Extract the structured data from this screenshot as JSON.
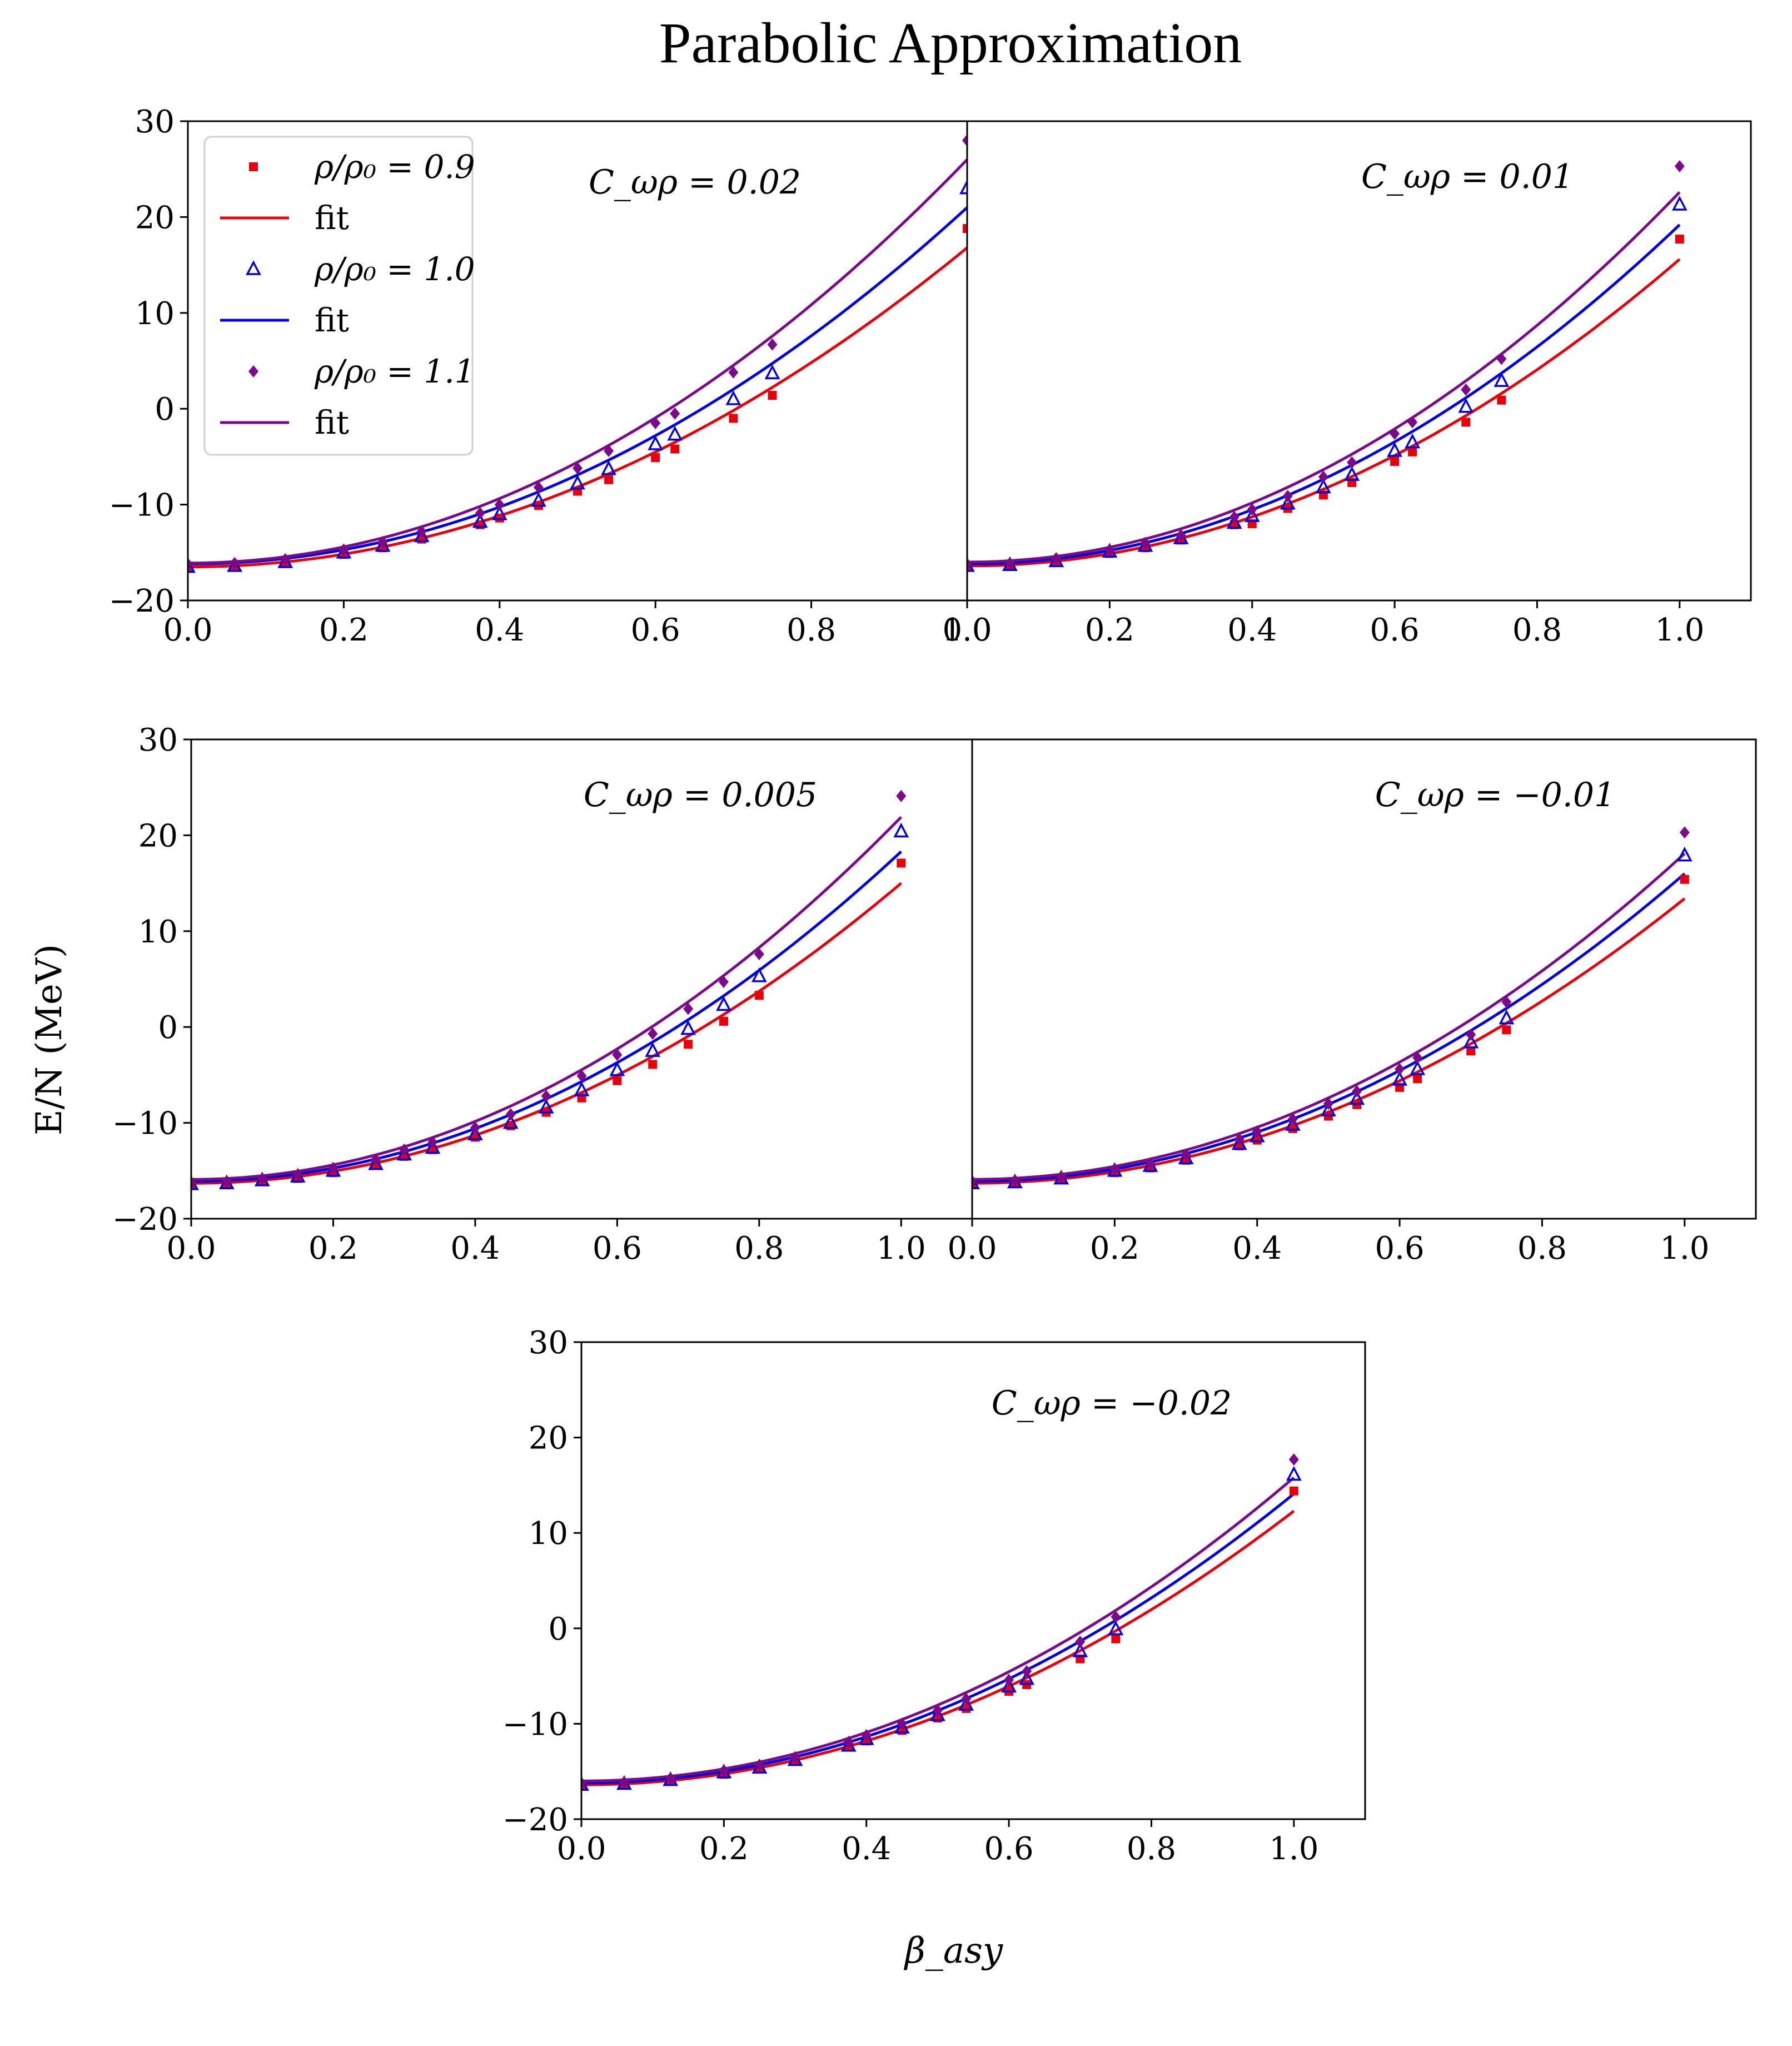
{
  "figure": {
    "title": "Parabolic Approximation",
    "ylabel": "E/N (MeV)",
    "xlabel": "β_asy"
  },
  "legend": [
    {
      "label": "ρ/ρ₀ = 0.9",
      "series": "0.9",
      "kind": "marker"
    },
    {
      "label": "fit",
      "series": "0.9",
      "kind": "line"
    },
    {
      "label": "ρ/ρ₀ = 1.0",
      "series": "1.0",
      "kind": "marker"
    },
    {
      "label": "fit",
      "series": "1.0",
      "kind": "line"
    },
    {
      "label": "ρ/ρ₀ = 1.1",
      "series": "1.1",
      "kind": "marker"
    },
    {
      "label": "fit",
      "series": "1.1",
      "kind": "line"
    }
  ],
  "colors": {
    "0.9": "#e8000b",
    "1.0": "#0000e0",
    "1.1": "#7a0a8a"
  },
  "chart_data": [
    {
      "type": "scatter",
      "title": "C_ωρ = 0.02",
      "annotation": "C_ωρ = 0.02",
      "xlim": [
        0.0,
        1.0
      ],
      "ylim": [
        -20,
        30
      ],
      "xticks": [
        "0.0",
        "0.2",
        "0.4",
        "0.6",
        "0.8",
        "1.0"
      ],
      "yticks": [
        "−20",
        "−10",
        "0",
        "10",
        "20",
        "30"
      ],
      "series": [
        {
          "name": "ρ/ρ₀ = 0.9",
          "marker": "square",
          "x": [
            0,
            0.06,
            0.125,
            0.2,
            0.25,
            0.3,
            0.375,
            0.4,
            0.45,
            0.5,
            0.54,
            0.6,
            0.625,
            0.7,
            0.75,
            1.0
          ],
          "y": [
            -16.6,
            -16.5,
            -16.1,
            -15.2,
            -14.5,
            -13.6,
            -12.1,
            -11.4,
            -10.1,
            -8.6,
            -7.4,
            -5.1,
            -4.2,
            -1.0,
            1.4,
            18.8
          ]
        },
        {
          "name": "fit (ρ/ρ₀ = 0.9)",
          "a": -16.5,
          "b": 33.3
        },
        {
          "name": "ρ/ρ₀ = 1.0",
          "marker": "triangle",
          "x": [
            0,
            0.06,
            0.125,
            0.2,
            0.25,
            0.3,
            0.375,
            0.4,
            0.45,
            0.5,
            0.54,
            0.6,
            0.625,
            0.7,
            0.75,
            1.0
          ],
          "y": [
            -16.5,
            -16.4,
            -16.0,
            -15.0,
            -14.3,
            -13.3,
            -11.8,
            -11.0,
            -9.6,
            -7.8,
            -6.3,
            -3.7,
            -2.7,
            1.0,
            3.7,
            23.0
          ]
        },
        {
          "name": "fit (ρ/ρ₀ = 1.0)",
          "a": -16.2,
          "b": 37.2
        },
        {
          "name": "ρ/ρ₀ = 1.1",
          "marker": "diamond",
          "x": [
            0,
            0.06,
            0.125,
            0.2,
            0.25,
            0.3,
            0.375,
            0.4,
            0.45,
            0.5,
            0.54,
            0.6,
            0.625,
            0.7,
            0.75,
            1.0
          ],
          "y": [
            -16.2,
            -16.1,
            -15.7,
            -14.7,
            -13.9,
            -12.8,
            -10.9,
            -10.0,
            -8.2,
            -6.2,
            -4.4,
            -1.5,
            -0.5,
            3.8,
            6.7,
            28.0
          ]
        },
        {
          "name": "fit (ρ/ρ₀ = 1.1)",
          "a": -16.1,
          "b": 42.1
        }
      ]
    },
    {
      "type": "scatter",
      "title": "C_ωρ = 0.01",
      "annotation": "C_ωρ = 0.01",
      "xlim": [
        0.0,
        1.1
      ],
      "ylim": [
        -20,
        30
      ],
      "xticks": [
        "0.0",
        "0.2",
        "0.4",
        "0.6",
        "0.8",
        "1.0"
      ],
      "yticks": [],
      "series": [
        {
          "name": "ρ/ρ₀ = 0.9",
          "marker": "square",
          "x": [
            0,
            0.06,
            0.125,
            0.2,
            0.25,
            0.3,
            0.375,
            0.4,
            0.45,
            0.5,
            0.54,
            0.6,
            0.625,
            0.7,
            0.75,
            1.0
          ],
          "y": [
            -16.5,
            -16.4,
            -16.0,
            -15.1,
            -14.5,
            -13.7,
            -12.1,
            -12.0,
            -10.4,
            -9.0,
            -7.7,
            -5.5,
            -4.5,
            -1.4,
            0.9,
            17.7
          ]
        },
        {
          "name": "fit (ρ/ρ₀ = 0.9)",
          "a": -16.4,
          "b": 32.0
        },
        {
          "name": "ρ/ρ₀ = 1.0",
          "marker": "triangle",
          "x": [
            0,
            0.06,
            0.125,
            0.2,
            0.25,
            0.3,
            0.375,
            0.4,
            0.45,
            0.5,
            0.54,
            0.6,
            0.625,
            0.7,
            0.75,
            1.0
          ],
          "y": [
            -16.4,
            -16.3,
            -15.9,
            -14.9,
            -14.3,
            -13.5,
            -11.9,
            -11.2,
            -9.9,
            -8.2,
            -6.9,
            -4.4,
            -3.5,
            0.2,
            2.9,
            21.3
          ]
        },
        {
          "name": "fit (ρ/ρ₀ = 1.0)",
          "a": -16.2,
          "b": 35.4
        },
        {
          "name": "ρ/ρ₀ = 1.1",
          "marker": "diamond",
          "x": [
            0,
            0.06,
            0.125,
            0.2,
            0.25,
            0.3,
            0.375,
            0.4,
            0.45,
            0.5,
            0.54,
            0.6,
            0.625,
            0.7,
            0.75,
            1.0
          ],
          "y": [
            -16.2,
            -16.1,
            -15.6,
            -14.7,
            -14.0,
            -13.2,
            -11.3,
            -10.5,
            -9.1,
            -7.1,
            -5.6,
            -2.6,
            -1.4,
            2.0,
            5.2,
            25.3
          ]
        },
        {
          "name": "fit (ρ/ρ₀ = 1.1)",
          "a": -16.0,
          "b": 38.6
        }
      ]
    },
    {
      "type": "scatter",
      "title": "C_ωρ = 0.005",
      "annotation": "C_ωρ = 0.005",
      "xlim": [
        0.0,
        1.1
      ],
      "ylim": [
        -20,
        30
      ],
      "xticks": [
        "0.0",
        "0.2",
        "0.4",
        "0.6",
        "0.8",
        "1.0"
      ],
      "yticks": [
        "−20",
        "−10",
        "0",
        "10",
        "20",
        "30"
      ],
      "series": [
        {
          "name": "ρ/ρ₀ = 0.9",
          "marker": "square",
          "x": [
            0,
            0.05,
            0.1,
            0.15,
            0.2,
            0.26,
            0.3,
            0.34,
            0.4,
            0.45,
            0.5,
            0.55,
            0.6,
            0.65,
            0.7,
            0.75,
            0.8,
            1.0
          ],
          "y": [
            -16.5,
            -16.4,
            -16.1,
            -15.8,
            -15.2,
            -14.3,
            -13.5,
            -12.8,
            -11.5,
            -10.3,
            -8.9,
            -7.4,
            -5.6,
            -3.9,
            -1.8,
            0.6,
            3.3,
            17.1
          ]
        },
        {
          "name": "fit (ρ/ρ₀ = 0.9)",
          "a": -16.3,
          "b": 31.3
        },
        {
          "name": "ρ/ρ₀ = 1.0",
          "marker": "triangle",
          "x": [
            0,
            0.05,
            0.1,
            0.15,
            0.2,
            0.26,
            0.3,
            0.34,
            0.4,
            0.45,
            0.5,
            0.55,
            0.6,
            0.65,
            0.7,
            0.75,
            0.8,
            1.0
          ],
          "y": [
            -16.4,
            -16.3,
            -16.0,
            -15.6,
            -15.0,
            -14.3,
            -13.3,
            -12.6,
            -11.2,
            -10.0,
            -8.4,
            -6.6,
            -4.5,
            -2.5,
            -0.2,
            2.3,
            5.3,
            20.4
          ]
        },
        {
          "name": "fit (ρ/ρ₀ = 1.0)",
          "a": -16.1,
          "b": 34.4
        },
        {
          "name": "ρ/ρ₀ = 1.1",
          "marker": "diamond",
          "x": [
            0,
            0.05,
            0.1,
            0.15,
            0.2,
            0.26,
            0.3,
            0.34,
            0.4,
            0.45,
            0.5,
            0.55,
            0.6,
            0.65,
            0.7,
            0.75,
            0.8,
            1.0
          ],
          "y": [
            -16.2,
            -16.1,
            -15.8,
            -15.4,
            -14.7,
            -13.8,
            -12.8,
            -12.0,
            -10.5,
            -9.1,
            -7.2,
            -5.1,
            -2.9,
            -0.7,
            1.9,
            4.7,
            7.6,
            24.1
          ]
        },
        {
          "name": "fit (ρ/ρ₀ = 1.1)",
          "a": -15.9,
          "b": 37.8
        }
      ]
    },
    {
      "type": "scatter",
      "title": "C_ωρ = −0.01",
      "annotation": "C_ωρ = −0.01",
      "xlim": [
        0.0,
        1.1
      ],
      "ylim": [
        -20,
        30
      ],
      "xticks": [
        "0.0",
        "0.2",
        "0.4",
        "0.6",
        "0.8",
        "1.0"
      ],
      "yticks": [],
      "series": [
        {
          "name": "ρ/ρ₀ = 0.9",
          "marker": "square",
          "x": [
            0,
            0.06,
            0.125,
            0.2,
            0.25,
            0.3,
            0.375,
            0.4,
            0.45,
            0.5,
            0.54,
            0.6,
            0.625,
            0.7,
            0.75,
            1.0
          ],
          "y": [
            -16.4,
            -16.3,
            -15.9,
            -15.2,
            -14.7,
            -13.9,
            -12.4,
            -11.8,
            -10.6,
            -9.3,
            -8.1,
            -6.3,
            -5.4,
            -2.5,
            -0.3,
            15.4
          ]
        },
        {
          "name": "fit (ρ/ρ₀ = 0.9)",
          "a": -16.3,
          "b": 29.7
        },
        {
          "name": "ρ/ρ₀ = 1.0",
          "marker": "triangle",
          "x": [
            0,
            0.06,
            0.125,
            0.2,
            0.25,
            0.3,
            0.375,
            0.4,
            0.45,
            0.5,
            0.54,
            0.6,
            0.625,
            0.7,
            0.75,
            1.0
          ],
          "y": [
            -16.3,
            -16.2,
            -15.8,
            -15.0,
            -14.5,
            -13.7,
            -12.2,
            -11.4,
            -10.2,
            -8.7,
            -7.5,
            -5.5,
            -4.4,
            -1.6,
            0.9,
            17.9
          ]
        },
        {
          "name": "fit (ρ/ρ₀ = 1.0)",
          "a": -16.1,
          "b": 32.1
        },
        {
          "name": "ρ/ρ₀ = 1.1",
          "marker": "diamond",
          "x": [
            0,
            0.06,
            0.125,
            0.2,
            0.25,
            0.3,
            0.375,
            0.4,
            0.45,
            0.5,
            0.54,
            0.6,
            0.625,
            0.7,
            0.75,
            1.0
          ],
          "y": [
            -16.1,
            -16.0,
            -15.6,
            -14.8,
            -14.2,
            -13.3,
            -11.7,
            -10.9,
            -9.6,
            -8.0,
            -6.7,
            -4.4,
            -3.2,
            -0.8,
            2.6,
            20.3
          ]
        },
        {
          "name": "fit (ρ/ρ₀ = 1.1)",
          "a": -15.9,
          "b": 34.0
        }
      ]
    },
    {
      "type": "scatter",
      "title": "C_ωρ = −0.02",
      "annotation": "C_ωρ = −0.02",
      "xlim": [
        0.0,
        1.1
      ],
      "ylim": [
        -20,
        30
      ],
      "xticks": [
        "0.0",
        "0.2",
        "0.4",
        "0.6",
        "0.8",
        "1.0"
      ],
      "yticks": [
        "−20",
        "−10",
        "0",
        "10",
        "20",
        "30"
      ],
      "series": [
        {
          "name": "ρ/ρ₀ = 0.9",
          "marker": "square",
          "x": [
            0,
            0.06,
            0.125,
            0.2,
            0.25,
            0.3,
            0.375,
            0.4,
            0.45,
            0.5,
            0.54,
            0.6,
            0.625,
            0.7,
            0.75,
            1.0
          ],
          "y": [
            -16.5,
            -16.4,
            -16.0,
            -15.3,
            -14.7,
            -13.9,
            -12.4,
            -11.8,
            -10.7,
            -9.4,
            -8.4,
            -6.6,
            -5.9,
            -3.2,
            -1.1,
            14.4
          ]
        },
        {
          "name": "fit (ρ/ρ₀ = 0.9)",
          "a": -16.4,
          "b": 28.7
        },
        {
          "name": "ρ/ρ₀ = 1.0",
          "marker": "triangle",
          "x": [
            0,
            0.06,
            0.125,
            0.2,
            0.25,
            0.3,
            0.375,
            0.4,
            0.45,
            0.5,
            0.54,
            0.6,
            0.625,
            0.7,
            0.75,
            1.0
          ],
          "y": [
            -16.4,
            -16.3,
            -15.9,
            -15.1,
            -14.6,
            -13.8,
            -12.3,
            -11.6,
            -10.4,
            -9.1,
            -8.0,
            -6.1,
            -5.3,
            -2.4,
            -0.1,
            16.1
          ]
        },
        {
          "name": "fit (ρ/ρ₀ = 1.0)",
          "a": -16.2,
          "b": 30.3
        },
        {
          "name": "ρ/ρ₀ = 1.1",
          "marker": "diamond",
          "x": [
            0,
            0.06,
            0.125,
            0.2,
            0.25,
            0.3,
            0.375,
            0.4,
            0.45,
            0.5,
            0.54,
            0.6,
            0.625,
            0.7,
            0.75,
            1.0
          ],
          "y": [
            -16.2,
            -16.1,
            -15.7,
            -14.9,
            -14.3,
            -13.5,
            -11.9,
            -11.2,
            -10.0,
            -8.6,
            -7.4,
            -5.4,
            -4.5,
            -1.4,
            1.2,
            17.7
          ]
        },
        {
          "name": "fit (ρ/ρ₀ = 1.1)",
          "a": -16.0,
          "b": 31.8
        }
      ]
    }
  ]
}
